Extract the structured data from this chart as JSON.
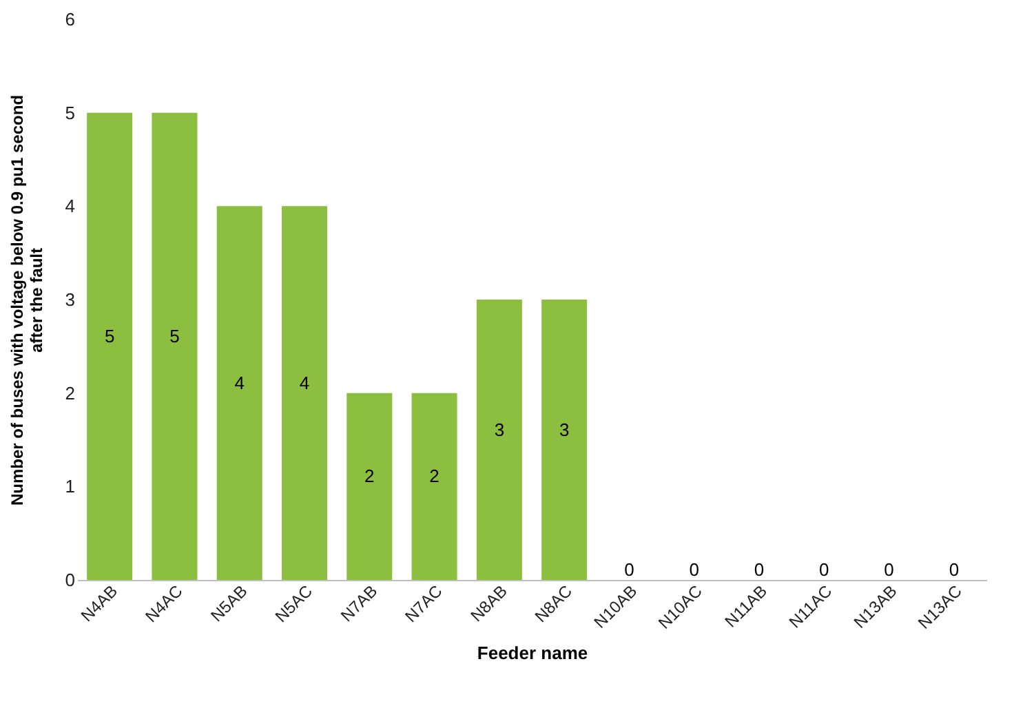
{
  "chart_data": {
    "type": "bar",
    "xlabel": "Feeder name",
    "ylabel": "Number of buses with voltage below 0.9 pu1 second after the fault",
    "categories": [
      "N4AB",
      "N4AC",
      "N5AB",
      "N5AC",
      "N7AB",
      "N7AC",
      "N8AB",
      "N8AC",
      "N10AB",
      "N10AC",
      "N11AB",
      "N11AC",
      "N13AB",
      "N13AC"
    ],
    "values": [
      5,
      5,
      4,
      4,
      2,
      2,
      3,
      3,
      0,
      0,
      0,
      0,
      0,
      0
    ],
    "color": "#8cbf3f",
    "ylim": [
      0,
      6
    ],
    "yticks": [
      0,
      1,
      2,
      3,
      4,
      5,
      6
    ],
    "data_labels": true,
    "grid": false
  }
}
